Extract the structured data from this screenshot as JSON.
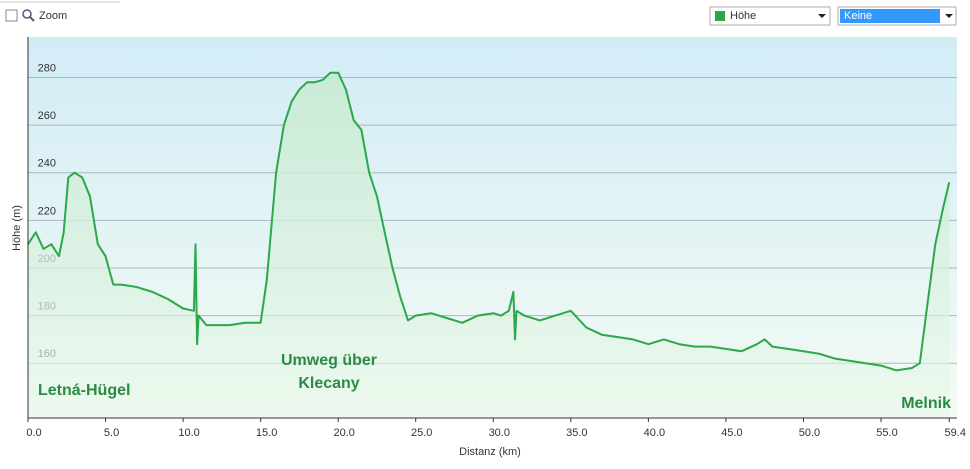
{
  "ui": {
    "zoom_label": "Zoom",
    "overlay_select": "Keine"
  },
  "chart_data": {
    "type": "line",
    "xlabel": "Distanz  (km)",
    "ylabel": "Höhe (m)",
    "x": [
      0,
      0.5,
      1,
      1.5,
      2,
      2.3,
      2.6,
      3,
      3.5,
      4,
      4.5,
      5,
      5.5,
      6,
      7,
      8,
      9,
      10,
      10.7,
      10.8,
      10.9,
      11,
      11.5,
      12,
      13,
      14,
      15,
      15.4,
      16,
      16.5,
      17,
      17.5,
      18,
      18.5,
      19,
      19.5,
      20,
      20.5,
      21,
      21.5,
      22,
      22.5,
      23,
      23.5,
      24,
      24.5,
      25,
      26,
      27,
      28,
      29,
      30,
      30.5,
      31,
      31.3,
      31.4,
      31.5,
      32,
      33,
      34,
      35,
      36,
      37,
      38,
      39,
      40,
      41,
      42,
      43,
      44,
      45,
      46,
      47,
      47.5,
      48,
      49,
      50,
      51,
      52,
      53,
      54,
      55,
      56,
      57,
      57.5,
      58,
      58.5,
      59,
      59.4
    ],
    "series": [
      {
        "name": "Höhe",
        "color": "#2aa84a",
        "values": [
          210,
          215,
          208,
          210,
          205,
          215,
          238,
          240,
          238,
          230,
          210,
          205,
          193,
          193,
          192,
          190,
          187,
          183,
          182,
          210,
          168,
          180,
          176,
          176,
          176,
          177,
          177,
          195,
          240,
          260,
          270,
          275,
          278,
          278,
          279,
          282,
          282,
          275,
          262,
          258,
          240,
          230,
          215,
          200,
          188,
          178,
          180,
          181,
          179,
          177,
          180,
          181,
          180,
          182,
          190,
          170,
          182,
          180,
          178,
          180,
          182,
          175,
          172,
          171,
          170,
          168,
          170,
          168,
          167,
          167,
          166,
          165,
          168,
          170,
          167,
          166,
          165,
          164,
          162,
          161,
          160,
          159,
          157,
          158,
          160,
          185,
          210,
          225,
          236
        ]
      }
    ],
    "xlim": [
      0,
      59.9
    ],
    "ylim": [
      137,
      297
    ],
    "xticks": [
      {
        "value": 0,
        "label": "0.0"
      },
      {
        "value": 5,
        "label": "5.0"
      },
      {
        "value": 10,
        "label": "10.0"
      },
      {
        "value": 15,
        "label": "15.0"
      },
      {
        "value": 20,
        "label": "20.0"
      },
      {
        "value": 25,
        "label": "25.0"
      },
      {
        "value": 30,
        "label": "30.0"
      },
      {
        "value": 35,
        "label": "35.0"
      },
      {
        "value": 40,
        "label": "40.0"
      },
      {
        "value": 45,
        "label": "45.0"
      },
      {
        "value": 50,
        "label": "50.0"
      },
      {
        "value": 55,
        "label": "55.0"
      },
      59.4
    ],
    "yticks": [
      160,
      180,
      200,
      220,
      240,
      260,
      280
    ],
    "grid": true,
    "annotations": [
      "Letná-Hügel",
      "Umweg über",
      "Klecany",
      "Melnik"
    ]
  }
}
